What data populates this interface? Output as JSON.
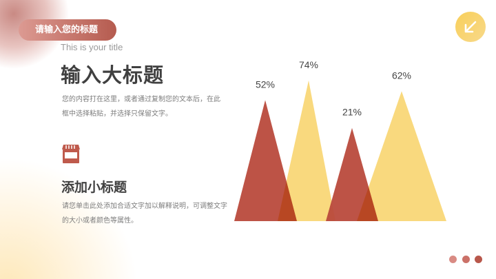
{
  "header": {
    "pill_title": "请输入您的标题",
    "subtitle_en": "This is your title",
    "main_title": "输入大标题",
    "paragraph": "您的内容打在这里，或者通过复制您的文本后，在此框中选择粘贴，并选择只保留文字。"
  },
  "section": {
    "icon": "shop-icon",
    "title": "添加小标题",
    "paragraph": "请您单击此处添加合适文字加以解释说明，可调整文字的大小或者颜色等属性。"
  },
  "corner_button": {
    "icon": "arrow-down-left-icon"
  },
  "pager_dots": 3,
  "colors": {
    "red": "#b94a3c",
    "yellow": "#f8d46c",
    "overlap": "#e8a23a",
    "accent_pink": "#c9766c"
  },
  "chart_data": {
    "type": "triangle-bar",
    "labels": [
      "52%",
      "74%",
      "21%",
      "62%"
    ],
    "values": [
      52,
      74,
      21,
      62
    ],
    "series_colors": [
      "red",
      "yellow",
      "red",
      "yellow"
    ]
  }
}
